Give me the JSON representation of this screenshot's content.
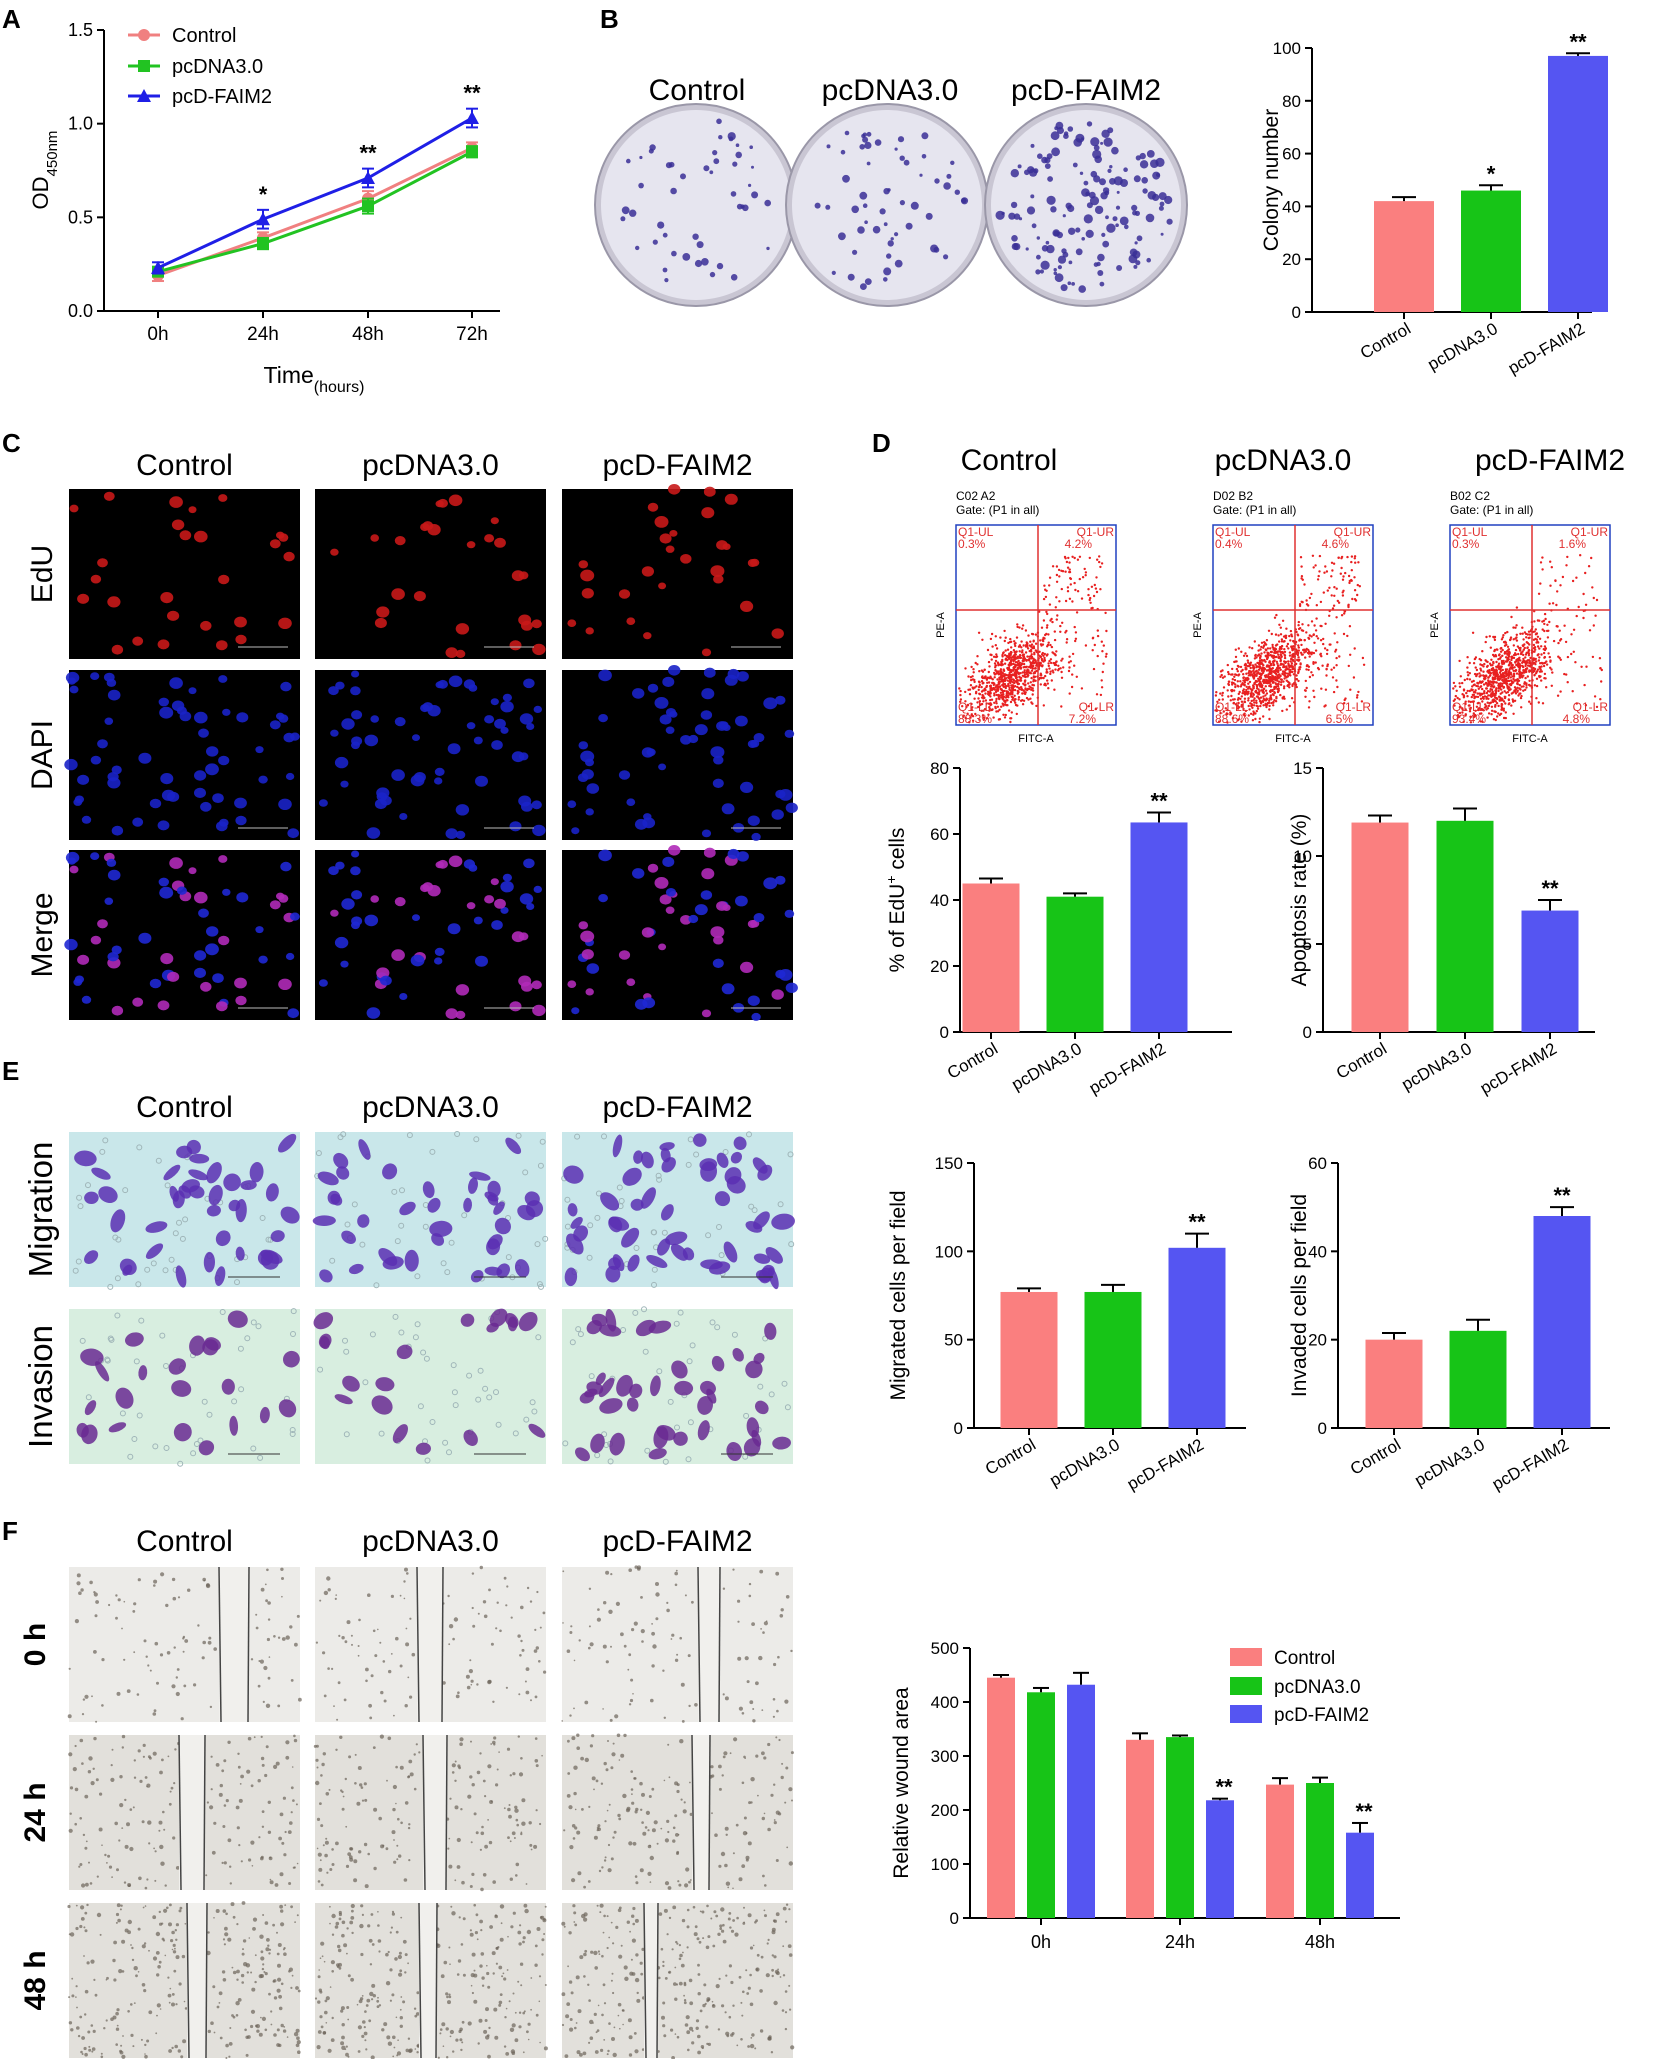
{
  "colors": {
    "control": "#FA7F7F",
    "pcdna": "#17C417",
    "faim2": "#5555F2",
    "line_control": "#F08080",
    "line_pcdna": "#22C322",
    "line_faim2": "#1F1FE6",
    "img_red_bg": "#000000",
    "img_blue_bg": "#000010",
    "img_migration_bg": "#C9E7EA",
    "img_invasion_bg": "#D8EEE0",
    "img_wound_bg": "#E6E4E0",
    "dot_red": "#E82020",
    "quad_line": "#E03030",
    "flow_axis": "#2040C0"
  },
  "panels": {
    "A": "A",
    "B": "B",
    "C": "C",
    "D": "D",
    "E": "E",
    "F": "F"
  },
  "groups": [
    "Control",
    "pcDNA3.0",
    "pcD-FAIM2"
  ],
  "panelA": {
    "type": "line",
    "ylabel": "OD",
    "ylabel_sub": "450nm",
    "xlabel": "Time",
    "xlabel_sub": "(hours)",
    "x": [
      "0h",
      "24h",
      "48h",
      "72h"
    ],
    "ylim": [
      0,
      1.5
    ],
    "yticks": [
      "0.0",
      "0.5",
      "1.0",
      "1.5"
    ],
    "series": [
      {
        "name": "Control",
        "values": [
          0.19,
          0.39,
          0.6,
          0.87
        ],
        "err": [
          0.03,
          0.03,
          0.04,
          0.03
        ]
      },
      {
        "name": "pcDNA3.0",
        "values": [
          0.21,
          0.36,
          0.56,
          0.85
        ],
        "err": [
          0.02,
          0.03,
          0.04,
          0.03
        ]
      },
      {
        "name": "pcD-FAIM2",
        "values": [
          0.23,
          0.49,
          0.71,
          1.03
        ],
        "err": [
          0.03,
          0.05,
          0.05,
          0.05
        ]
      }
    ],
    "sig": [
      "",
      "*",
      "**",
      "**"
    ],
    "legend_placement": "top-left"
  },
  "panelB_images": {
    "labels": [
      "Control",
      "pcDNA3.0",
      "pcD-FAIM2"
    ]
  },
  "panelB_chart": {
    "type": "bar",
    "ylabel": "Colony number",
    "categories": [
      "Control",
      "pcDNA3.0",
      "pcD-FAIM2"
    ],
    "values": [
      42,
      46,
      97
    ],
    "err": [
      1.5,
      2,
      1
    ],
    "sig": [
      "",
      "*",
      "**"
    ],
    "ylim": [
      0,
      100
    ],
    "yticks": [
      "0",
      "20",
      "40",
      "60",
      "80",
      "100"
    ]
  },
  "panelC": {
    "col_labels": [
      "Control",
      "pcDNA3.0",
      "pcD-FAIM2"
    ],
    "row_labels": [
      "EdU",
      "DAPI",
      "Merge"
    ]
  },
  "panelD_flow": {
    "col_labels": [
      "Control",
      "pcDNA3.0",
      "pcD-FAIM2"
    ],
    "plots": [
      {
        "title": "C02 A2",
        "gate": "Gate: (P1 in all)",
        "ul": "Q1-UL",
        "ul_v": "0.3%",
        "ur": "Q1-UR",
        "ur_v": "4.2%",
        "ll": "Q1-LL",
        "ll_v": "88.3%",
        "lr": "Q1-LR",
        "lr_v": "7.2%"
      },
      {
        "title": "D02 B2",
        "gate": "Gate: (P1 in all)",
        "ul": "Q1-UL",
        "ul_v": "0.4%",
        "ur": "Q1-UR",
        "ur_v": "4.6%",
        "ll": "Q1-LL",
        "ll_v": "88.6%",
        "lr": "Q1-LR",
        "lr_v": "6.5%"
      },
      {
        "title": "B02 C2",
        "gate": "Gate: (P1 in all)",
        "ul": "Q1-UL",
        "ul_v": "0.3%",
        "ur": "Q1-UR",
        "ur_v": "1.6%",
        "ll": "Q1-LL",
        "ll_v": "93.4%",
        "lr": "Q1-LR",
        "lr_v": "4.8%"
      }
    ],
    "xaxis": "FITC-A",
    "yaxis": "PE-A"
  },
  "panelD_edu": {
    "type": "bar",
    "ylabel": "% of EdU",
    "ylabel_sup": "+",
    "ylabel_tail": " cells",
    "categories": [
      "Control",
      "pcDNA3.0",
      "pcD-FAIM2"
    ],
    "values": [
      45,
      41,
      63.5
    ],
    "err": [
      1.5,
      1,
      3
    ],
    "sig": [
      "",
      "",
      "**"
    ],
    "ylim": [
      0,
      80
    ],
    "yticks": [
      "0",
      "20",
      "40",
      "60",
      "80"
    ]
  },
  "panelD_apop": {
    "type": "bar",
    "ylabel": "Apoptosis rate (%)",
    "categories": [
      "Control",
      "pcDNA3.0",
      "pcD-FAIM2"
    ],
    "values": [
      11.9,
      12,
      6.9
    ],
    "err": [
      0.4,
      0.7,
      0.6
    ],
    "sig": [
      "",
      "",
      "**"
    ],
    "ylim": [
      0,
      15
    ],
    "yticks": [
      "0",
      "5",
      "10",
      "15"
    ]
  },
  "panelE": {
    "col_labels": [
      "Control",
      "pcDNA3.0",
      "pcD-FAIM2"
    ],
    "row_labels": [
      "Migration",
      "Invasion"
    ]
  },
  "panelE_mig": {
    "type": "bar",
    "ylabel": "Migrated cells per field",
    "categories": [
      "Control",
      "pcDNA3.0",
      "pcD-FAIM2"
    ],
    "values": [
      77,
      77,
      102
    ],
    "err": [
      2,
      4,
      8
    ],
    "sig": [
      "",
      "",
      "**"
    ],
    "ylim": [
      0,
      150
    ],
    "yticks": [
      "0",
      "50",
      "100",
      "150"
    ]
  },
  "panelE_inv": {
    "type": "bar",
    "ylabel": "Invaded cells per field",
    "categories": [
      "Control",
      "pcDNA3.0",
      "pcD-FAIM2"
    ],
    "values": [
      20,
      22,
      48
    ],
    "err": [
      1.5,
      2.5,
      2
    ],
    "sig": [
      "",
      "",
      "**"
    ],
    "ylim": [
      0,
      60
    ],
    "yticks": [
      "0",
      "20",
      "40",
      "60"
    ]
  },
  "panelF": {
    "col_labels": [
      "Control",
      "pcDNA3.0",
      "pcD-FAIM2"
    ],
    "row_labels": [
      "0 h",
      "24 h",
      "48 h"
    ]
  },
  "panelF_chart": {
    "type": "bar",
    "ylabel": "Relative wound area",
    "categories": [
      "0h",
      "24h",
      "48h"
    ],
    "series": [
      {
        "name": "Control",
        "values": [
          445,
          330,
          247
        ],
        "err": [
          5,
          12,
          12
        ]
      },
      {
        "name": "pcDNA3.0",
        "values": [
          418,
          335,
          250
        ],
        "err": [
          8,
          3,
          10
        ]
      },
      {
        "name": "pcD-FAIM2",
        "values": [
          432,
          218,
          158
        ],
        "err": [
          22,
          3,
          18
        ]
      }
    ],
    "sig": [
      [
        "",
        "",
        ""
      ],
      [
        "",
        "",
        "**"
      ],
      [
        "",
        "",
        "**"
      ]
    ],
    "ylim": [
      0,
      500
    ],
    "yticks": [
      "0",
      "100",
      "200",
      "300",
      "400",
      "500"
    ],
    "legend_placement": "top-right"
  }
}
